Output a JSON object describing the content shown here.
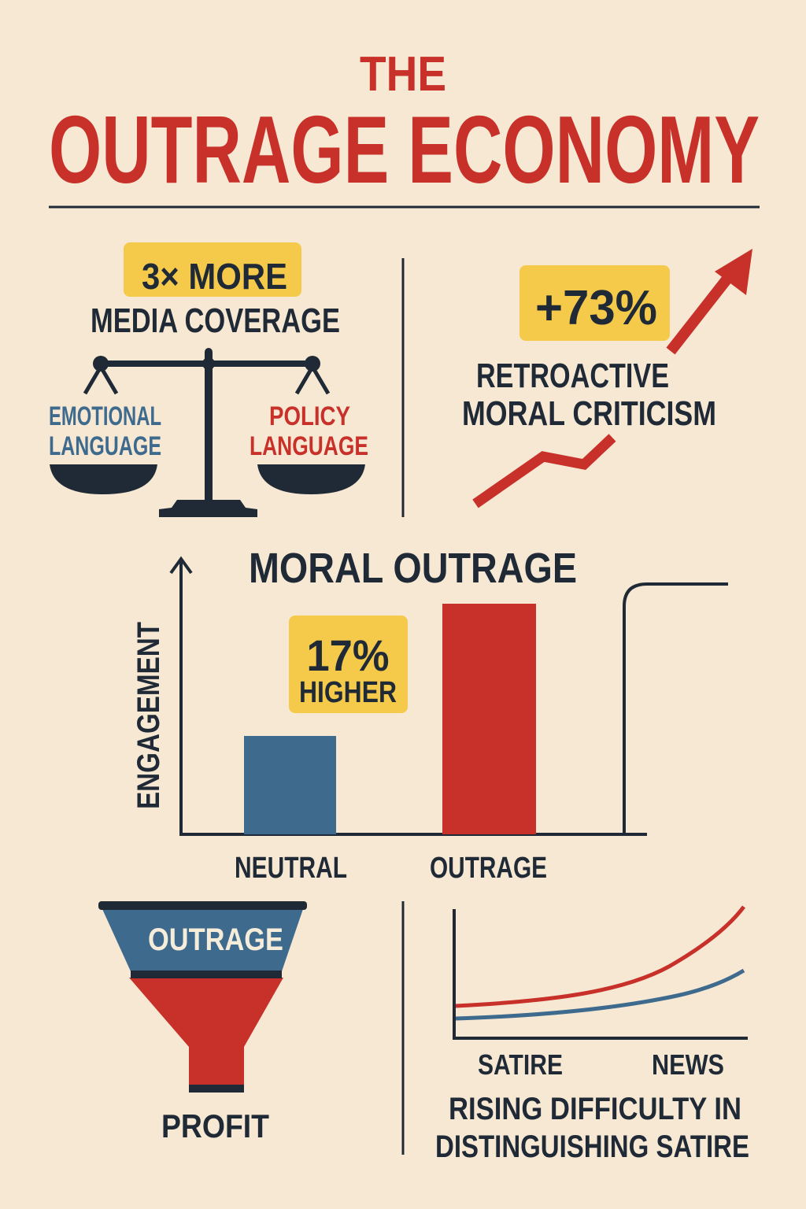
{
  "header": {
    "title_line1": "THE",
    "title_line2": "OUTRAGE ECONOMY"
  },
  "coverage": {
    "badge": "3× MORE",
    "label": "MEDIA COVERAGE",
    "left_pan_line1": "EMOTIONAL",
    "left_pan_line2": "LANGUAGE",
    "right_pan_line1": "POLICY",
    "right_pan_line2": "LANGUAGE",
    "icon": "balance-scale-icon"
  },
  "criticism": {
    "badge": "+73%",
    "label_line1": "RETROACTIVE",
    "label_line2": "MORAL CRITICISM",
    "icon": "trend-up-arrow-icon"
  },
  "engagement_chart": {
    "title": "MORAL OUTRAGE",
    "ylabel": "ENGAGEMENT",
    "badge_line1": "17%",
    "badge_line2": "HIGHER",
    "categories": [
      "NEUTRAL",
      "OUTRAGE"
    ]
  },
  "funnel": {
    "top_label": "OUTRAGE",
    "bottom_label": "PROFIT",
    "icon": "funnel-icon"
  },
  "satire_chart": {
    "x_labels": [
      "SATIRE",
      "NEWS"
    ],
    "caption_line1": "RISING DIFFICULTY IN",
    "caption_line2": "DISTINGUISHING SATIRE"
  },
  "colors": {
    "background": "#f7e8d3",
    "red": "#c8302a",
    "navy": "#1f2a36",
    "blue": "#3e6a8e",
    "yellow": "#f5c94a"
  }
}
